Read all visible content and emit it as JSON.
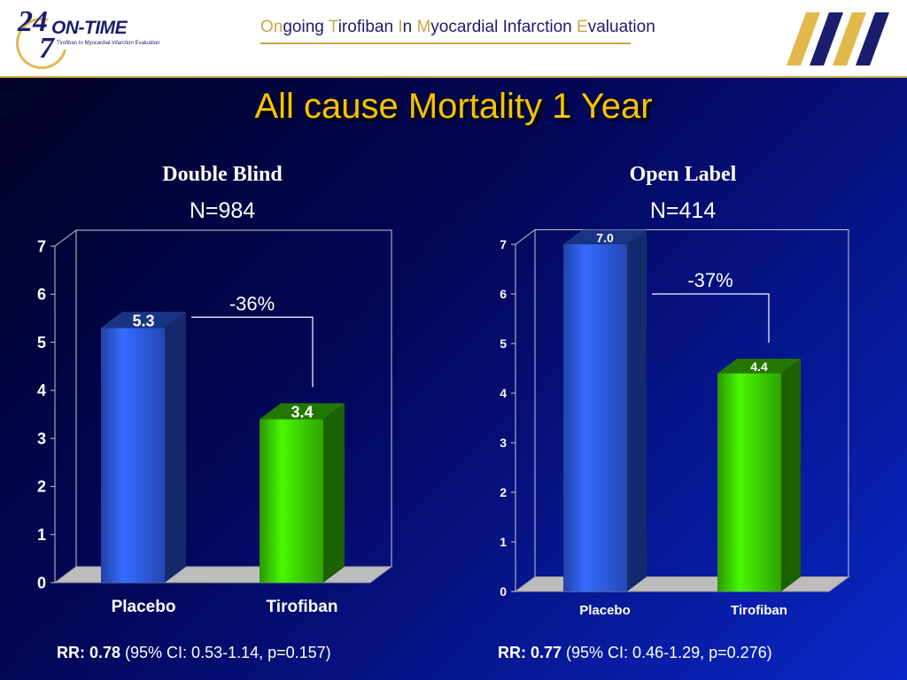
{
  "header": {
    "logo_num_top": "24",
    "logo_num_bottom": "7",
    "logo_brand": "ON-TIME",
    "logo_sub": "Tirofiban In Myocardial Infarction Evaluation",
    "study_name": [
      {
        "cap": "On",
        "rest": "going "
      },
      {
        "cap": "T",
        "rest": "irofiban "
      },
      {
        "cap": "I",
        "rest": "n "
      },
      {
        "cap": "M",
        "rest": "yocardial Infarction "
      },
      {
        "cap": "E",
        "rest": "valuation"
      }
    ]
  },
  "title": "All cause Mortality 1 Year",
  "colors": {
    "placebo": "#2f5ef0",
    "tirofiban": "#3fd800",
    "title": "#f5c400",
    "accent": "#c9a64a",
    "navy": "#1b1e6e"
  },
  "chart_data": [
    {
      "type": "bar",
      "title": "Double Blind",
      "subtitle": "N=984",
      "categories": [
        "Placebo",
        "Tirofiban"
      ],
      "values": [
        5.3,
        3.4
      ],
      "value_labels": [
        "5.3",
        "3.4"
      ],
      "bar_colors": [
        "#2f5ef0",
        "#3fd800"
      ],
      "ylim": [
        0,
        7
      ],
      "yticks": [
        0,
        1,
        2,
        3,
        4,
        5,
        6,
        7
      ],
      "grid": false,
      "annotation": "-36%",
      "footnote": {
        "label": "RR: 0.78",
        "detail": " (95% CI: 0.53-1.14, p=0.157)"
      }
    },
    {
      "type": "bar",
      "title": "Open Label",
      "subtitle": "N=414",
      "categories": [
        "Placebo",
        "Tirofiban"
      ],
      "values": [
        7.0,
        4.4
      ],
      "value_labels": [
        "7.0",
        "4.4"
      ],
      "bar_colors": [
        "#2f5ef0",
        "#3fd800"
      ],
      "ylim": [
        0,
        7
      ],
      "yticks": [
        0,
        1,
        2,
        3,
        4,
        5,
        6,
        7
      ],
      "grid": false,
      "annotation": "-37%",
      "footnote": {
        "label": "RR: 0.77",
        "detail": " (95% CI: 0.46-1.29, p=0.276)"
      }
    }
  ]
}
